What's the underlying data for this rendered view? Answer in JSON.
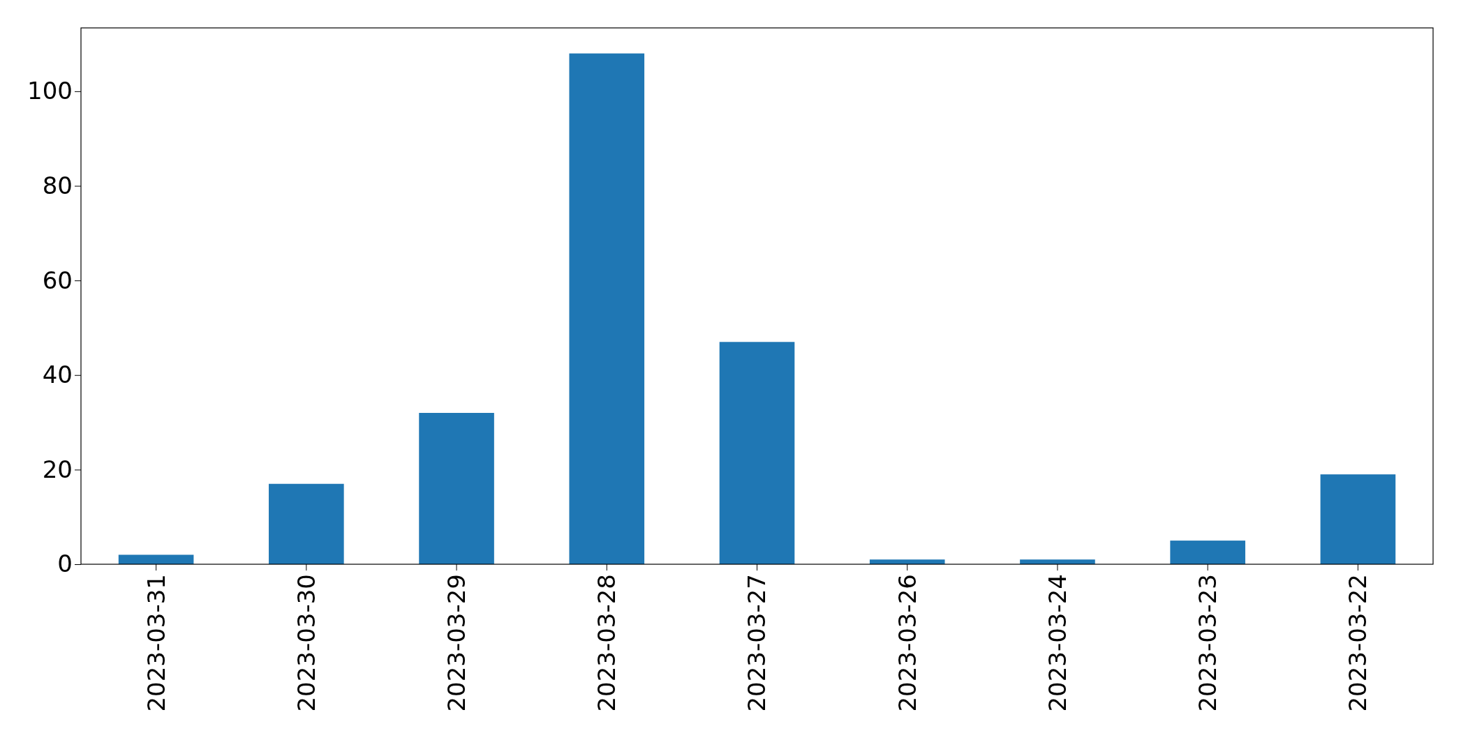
{
  "chart_data": {
    "type": "bar",
    "categories": [
      "2023-03-31",
      "2023-03-30",
      "2023-03-29",
      "2023-03-28",
      "2023-03-27",
      "2023-03-26",
      "2023-03-24",
      "2023-03-23",
      "2023-03-22"
    ],
    "values": [
      2,
      17,
      32,
      108,
      47,
      1,
      1,
      5,
      19
    ],
    "color": "#1f77b4",
    "ylim": [
      0,
      113.4
    ],
    "yticks": [
      0,
      20,
      40,
      60,
      80,
      100
    ]
  }
}
